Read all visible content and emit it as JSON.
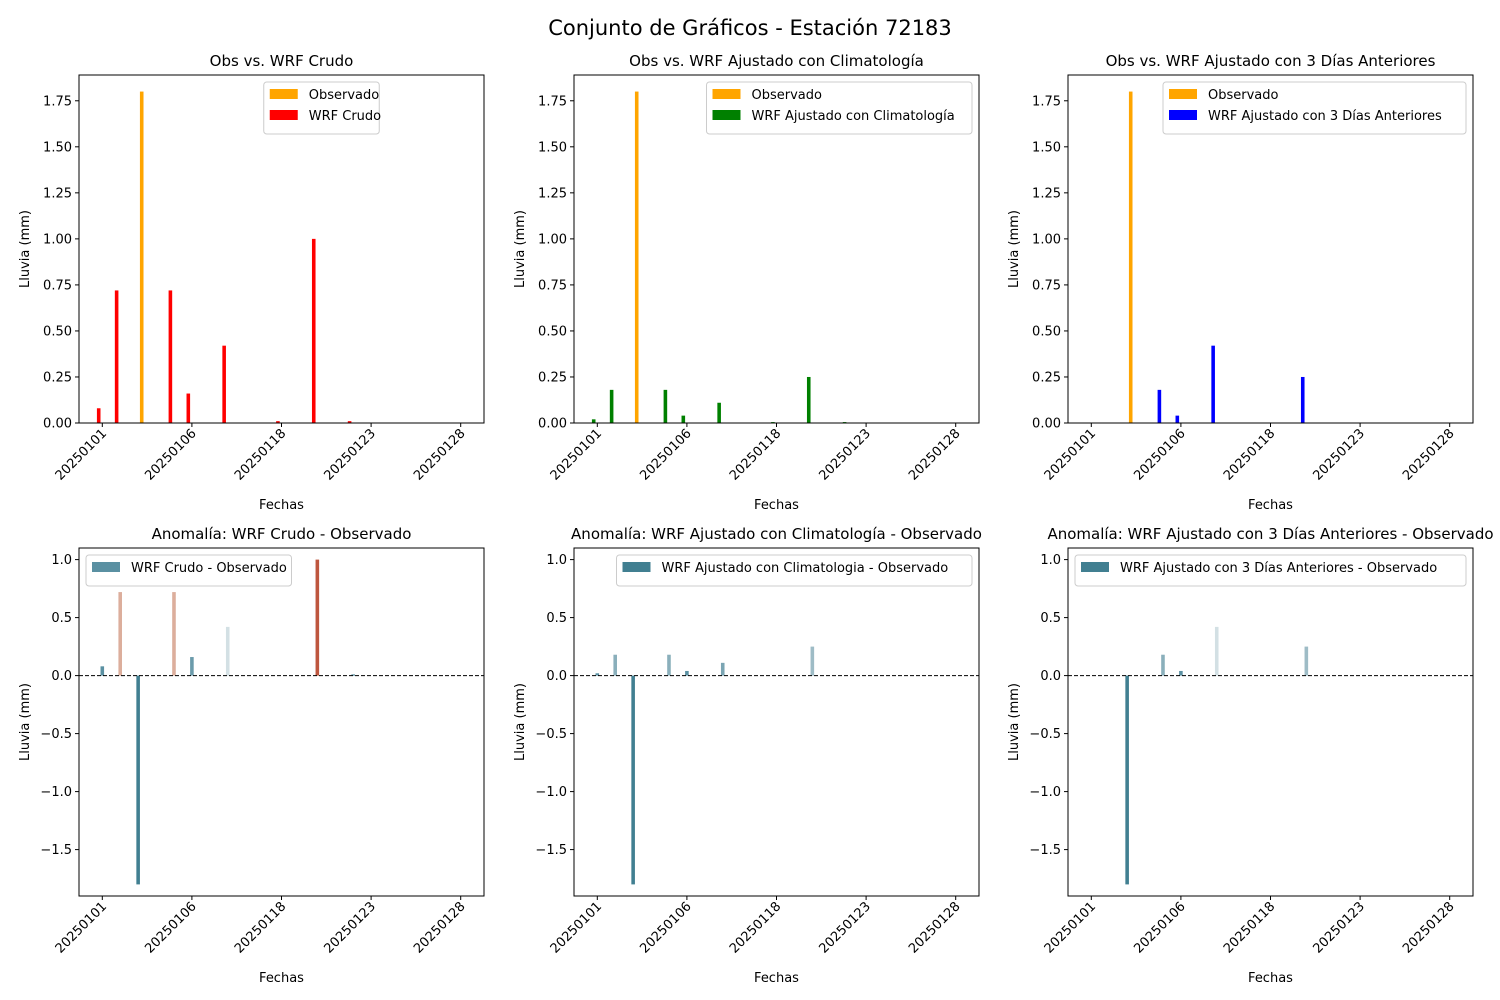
{
  "figure": {
    "suptitle": "Conjunto de Gráficos - Estación 72183"
  },
  "chart_data": [
    {
      "type": "bar",
      "title": "Obs vs. WRF Crudo",
      "xlabel": "Fechas",
      "ylabel": "Lluvia (mm)",
      "ylim": [
        0,
        1.89
      ],
      "yticks": [
        0,
        0.25,
        0.5,
        0.75,
        1.0,
        1.25,
        1.5,
        1.75
      ],
      "ytick_labels": [
        "0.00",
        "0.25",
        "0.50",
        "0.75",
        "1.00",
        "1.25",
        "1.50",
        "1.75"
      ],
      "xlim": [
        -1.3,
        21.3
      ],
      "xticks": [
        0,
        5,
        10,
        15,
        20
      ],
      "xtick_labels": [
        "20250101",
        "20250106",
        "20250118",
        "20250123",
        "20250128"
      ],
      "legend": "top-center",
      "series": [
        {
          "name": "Observado",
          "color": "#ffa500",
          "offset": 0.2,
          "x": [
            2
          ],
          "values": [
            1.8
          ]
        },
        {
          "name": "WRF Crudo",
          "color": "#ff0000",
          "offset": -0.2,
          "x": [
            0,
            1,
            4,
            5,
            7,
            10,
            12,
            14
          ],
          "values": [
            0.08,
            0.72,
            0.72,
            0.16,
            0.42,
            0.01,
            1.0,
            0.01
          ]
        }
      ]
    },
    {
      "type": "bar",
      "title": "Obs vs. WRF Ajustado con Climatología",
      "xlabel": "Fechas",
      "ylabel": "Lluvia (mm)",
      "ylim": [
        0,
        1.89
      ],
      "yticks": [
        0,
        0.25,
        0.5,
        0.75,
        1.0,
        1.25,
        1.5,
        1.75
      ],
      "ytick_labels": [
        "0.00",
        "0.25",
        "0.50",
        "0.75",
        "1.00",
        "1.25",
        "1.50",
        "1.75"
      ],
      "xlim": [
        -1.3,
        21.3
      ],
      "xticks": [
        0,
        5,
        10,
        15,
        20
      ],
      "xtick_labels": [
        "20250101",
        "20250106",
        "20250118",
        "20250123",
        "20250128"
      ],
      "legend": "top-right",
      "series": [
        {
          "name": "Observado",
          "color": "#ffa500",
          "offset": 0.2,
          "x": [
            2
          ],
          "values": [
            1.8
          ]
        },
        {
          "name": "WRF Ajustado con Climatología",
          "color": "#008000",
          "offset": -0.2,
          "x": [
            0,
            1,
            4,
            5,
            7,
            10,
            12,
            14
          ],
          "values": [
            0.02,
            0.18,
            0.18,
            0.04,
            0.11,
            0.005,
            0.25,
            0.005
          ]
        }
      ]
    },
    {
      "type": "bar",
      "title": "Obs vs. WRF Ajustado con 3 Días Anteriores",
      "xlabel": "Fechas",
      "ylabel": "Lluvia (mm)",
      "ylim": [
        0,
        1.89
      ],
      "yticks": [
        0,
        0.25,
        0.5,
        0.75,
        1.0,
        1.25,
        1.5,
        1.75
      ],
      "ytick_labels": [
        "0.00",
        "0.25",
        "0.50",
        "0.75",
        "1.00",
        "1.25",
        "1.50",
        "1.75"
      ],
      "xlim": [
        -1.3,
        21.3
      ],
      "xticks": [
        0,
        5,
        10,
        15,
        20
      ],
      "xtick_labels": [
        "20250101",
        "20250106",
        "20250118",
        "20250123",
        "20250128"
      ],
      "legend": "top-right",
      "series": [
        {
          "name": "Observado",
          "color": "#ffa500",
          "offset": 0.2,
          "x": [
            2
          ],
          "values": [
            1.8
          ]
        },
        {
          "name": "WRF Ajustado con 3 Días Anteriores",
          "color": "#0000ff",
          "offset": -0.2,
          "x": [
            4,
            5,
            7,
            12
          ],
          "values": [
            0.18,
            0.04,
            0.42,
            0.25
          ]
        }
      ]
    },
    {
      "type": "bar",
      "title": "Anomalía: WRF Crudo - Observado",
      "xlabel": "Fechas",
      "ylabel": "Lluvia (mm)",
      "ylim": [
        -1.9,
        1.1
      ],
      "yticks": [
        -1.5,
        -1.0,
        -0.5,
        0.0,
        0.5,
        1.0
      ],
      "ytick_labels": [
        "−1.5",
        "−1.0",
        "−0.5",
        "0.0",
        "0.5",
        "1.0"
      ],
      "xlim": [
        -1.3,
        21.3
      ],
      "xticks": [
        0,
        5,
        10,
        15,
        20
      ],
      "xtick_labels": [
        "20250101",
        "20250106",
        "20250118",
        "20250123",
        "20250128"
      ],
      "zero_line": true,
      "legend": "top-left",
      "series": [
        {
          "name": "WRF Crudo - Observado",
          "color": "#5a90a2",
          "x": [
            0,
            1,
            2,
            4,
            5,
            7,
            12,
            14
          ],
          "values": [
            0.08,
            0.72,
            -1.8,
            0.72,
            0.16,
            0.42,
            1.0,
            0.01
          ],
          "colors": [
            "#5a90a2",
            "#dcae9c",
            "#417f91",
            "#dcae9c",
            "#6b9bab",
            "#d3e0e4",
            "#be563e",
            "#417f91"
          ]
        }
      ]
    },
    {
      "type": "bar",
      "title": "Anomalía: WRF Ajustado con Climatología - Observado",
      "xlabel": "Fechas",
      "ylabel": "Lluvia (mm)",
      "ylim": [
        -1.9,
        1.1
      ],
      "yticks": [
        -1.5,
        -1.0,
        -0.5,
        0.0,
        0.5,
        1.0
      ],
      "ytick_labels": [
        "−1.5",
        "−1.0",
        "−0.5",
        "0.0",
        "0.5",
        "1.0"
      ],
      "xlim": [
        -1.3,
        21.3
      ],
      "xticks": [
        0,
        5,
        10,
        15,
        20
      ],
      "xtick_labels": [
        "20250101",
        "20250106",
        "20250118",
        "20250123",
        "20250128"
      ],
      "zero_line": true,
      "legend": "top-right",
      "series": [
        {
          "name": "WRF Ajustado con Climatologia - Observado",
          "color": "#417f91",
          "x": [
            0,
            1,
            2,
            4,
            5,
            7,
            12
          ],
          "values": [
            0.02,
            0.18,
            -1.8,
            0.18,
            0.04,
            0.11,
            0.25
          ],
          "colors": [
            "#5a90a2",
            "#8aafbb",
            "#417f91",
            "#8aafbb",
            "#5a90a2",
            "#7ba5b3",
            "#9ebcc6"
          ]
        }
      ]
    },
    {
      "type": "bar",
      "title": "Anomalía: WRF Ajustado con 3 Días Anteriores - Observado",
      "xlabel": "Fechas",
      "ylabel": "Lluvia (mm)",
      "ylim": [
        -1.9,
        1.1
      ],
      "yticks": [
        -1.5,
        -1.0,
        -0.5,
        0.0,
        0.5,
        1.0
      ],
      "ytick_labels": [
        "−1.5",
        "−1.0",
        "−0.5",
        "0.0",
        "0.5",
        "1.0"
      ],
      "xlim": [
        -1.3,
        21.3
      ],
      "xticks": [
        0,
        5,
        10,
        15,
        20
      ],
      "xtick_labels": [
        "20250101",
        "20250106",
        "20250118",
        "20250123",
        "20250128"
      ],
      "zero_line": true,
      "legend": "top-right",
      "series": [
        {
          "name": "WRF Ajustado con 3 Días Anteriores - Observado",
          "color": "#417f91",
          "x": [
            2,
            4,
            5,
            7,
            12
          ],
          "values": [
            -1.8,
            0.18,
            0.04,
            0.42,
            0.25
          ],
          "colors": [
            "#417f91",
            "#8aafbb",
            "#5a90a2",
            "#d3e0e4",
            "#9ebcc6"
          ]
        }
      ]
    }
  ]
}
